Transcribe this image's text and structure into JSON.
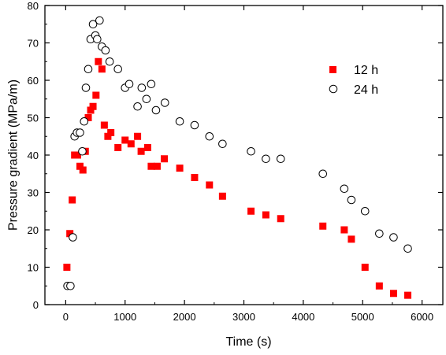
{
  "chart_data": {
    "type": "scatter",
    "xlabel": "Time (s)",
    "ylabel": "Pressure gradient (MPa/m)",
    "xlim": [
      -350,
      6350
    ],
    "ylim": [
      0,
      80
    ],
    "x_ticks": [
      0,
      1000,
      2000,
      3000,
      4000,
      5000,
      6000
    ],
    "y_ticks": [
      0,
      10,
      20,
      30,
      40,
      50,
      60,
      70,
      80
    ],
    "grid": false,
    "legend_position": "top-right",
    "series": [
      {
        "name": "12 h",
        "marker": "filled-square",
        "color": "#ff0000",
        "points": [
          [
            20,
            10
          ],
          [
            70,
            19
          ],
          [
            110,
            28
          ],
          [
            150,
            40
          ],
          [
            200,
            40
          ],
          [
            240,
            37
          ],
          [
            290,
            36
          ],
          [
            330,
            41
          ],
          [
            380,
            50
          ],
          [
            420,
            52
          ],
          [
            460,
            53
          ],
          [
            510,
            56
          ],
          [
            550,
            65
          ],
          [
            610,
            63
          ],
          [
            650,
            48
          ],
          [
            710,
            45
          ],
          [
            760,
            46
          ],
          [
            880,
            42
          ],
          [
            1000,
            44
          ],
          [
            1100,
            43
          ],
          [
            1210,
            45
          ],
          [
            1270,
            41
          ],
          [
            1380,
            42
          ],
          [
            1440,
            37
          ],
          [
            1540,
            37
          ],
          [
            1660,
            39
          ],
          [
            1920,
            36.5
          ],
          [
            2170,
            34
          ],
          [
            2420,
            32
          ],
          [
            2640,
            29
          ],
          [
            3120,
            25
          ],
          [
            3370,
            24
          ],
          [
            3620,
            23
          ],
          [
            4330,
            21
          ],
          [
            4690,
            20
          ],
          [
            4810,
            17.5
          ],
          [
            5040,
            10
          ],
          [
            5280,
            5
          ],
          [
            5520,
            3
          ],
          [
            5760,
            2.5
          ]
        ]
      },
      {
        "name": "24 h",
        "marker": "open-circle",
        "color": "#000000",
        "points": [
          [
            30,
            5
          ],
          [
            80,
            5
          ],
          [
            120,
            18
          ],
          [
            150,
            45
          ],
          [
            190,
            46
          ],
          [
            240,
            46
          ],
          [
            280,
            41
          ],
          [
            310,
            49
          ],
          [
            340,
            58
          ],
          [
            380,
            63
          ],
          [
            420,
            71
          ],
          [
            460,
            75
          ],
          [
            500,
            72
          ],
          [
            530,
            71
          ],
          [
            570,
            76
          ],
          [
            610,
            69
          ],
          [
            670,
            68
          ],
          [
            740,
            65
          ],
          [
            880,
            63
          ],
          [
            1000,
            58
          ],
          [
            1070,
            59
          ],
          [
            1210,
            53
          ],
          [
            1280,
            58
          ],
          [
            1360,
            55
          ],
          [
            1440,
            59
          ],
          [
            1520,
            52
          ],
          [
            1670,
            54
          ],
          [
            1920,
            49
          ],
          [
            2170,
            48
          ],
          [
            2420,
            45
          ],
          [
            2640,
            43
          ],
          [
            3120,
            41
          ],
          [
            3370,
            39
          ],
          [
            3620,
            39
          ],
          [
            4330,
            35
          ],
          [
            4690,
            31
          ],
          [
            4810,
            28
          ],
          [
            5040,
            25
          ],
          [
            5280,
            19
          ],
          [
            5520,
            18
          ],
          [
            5760,
            15
          ]
        ]
      }
    ]
  }
}
